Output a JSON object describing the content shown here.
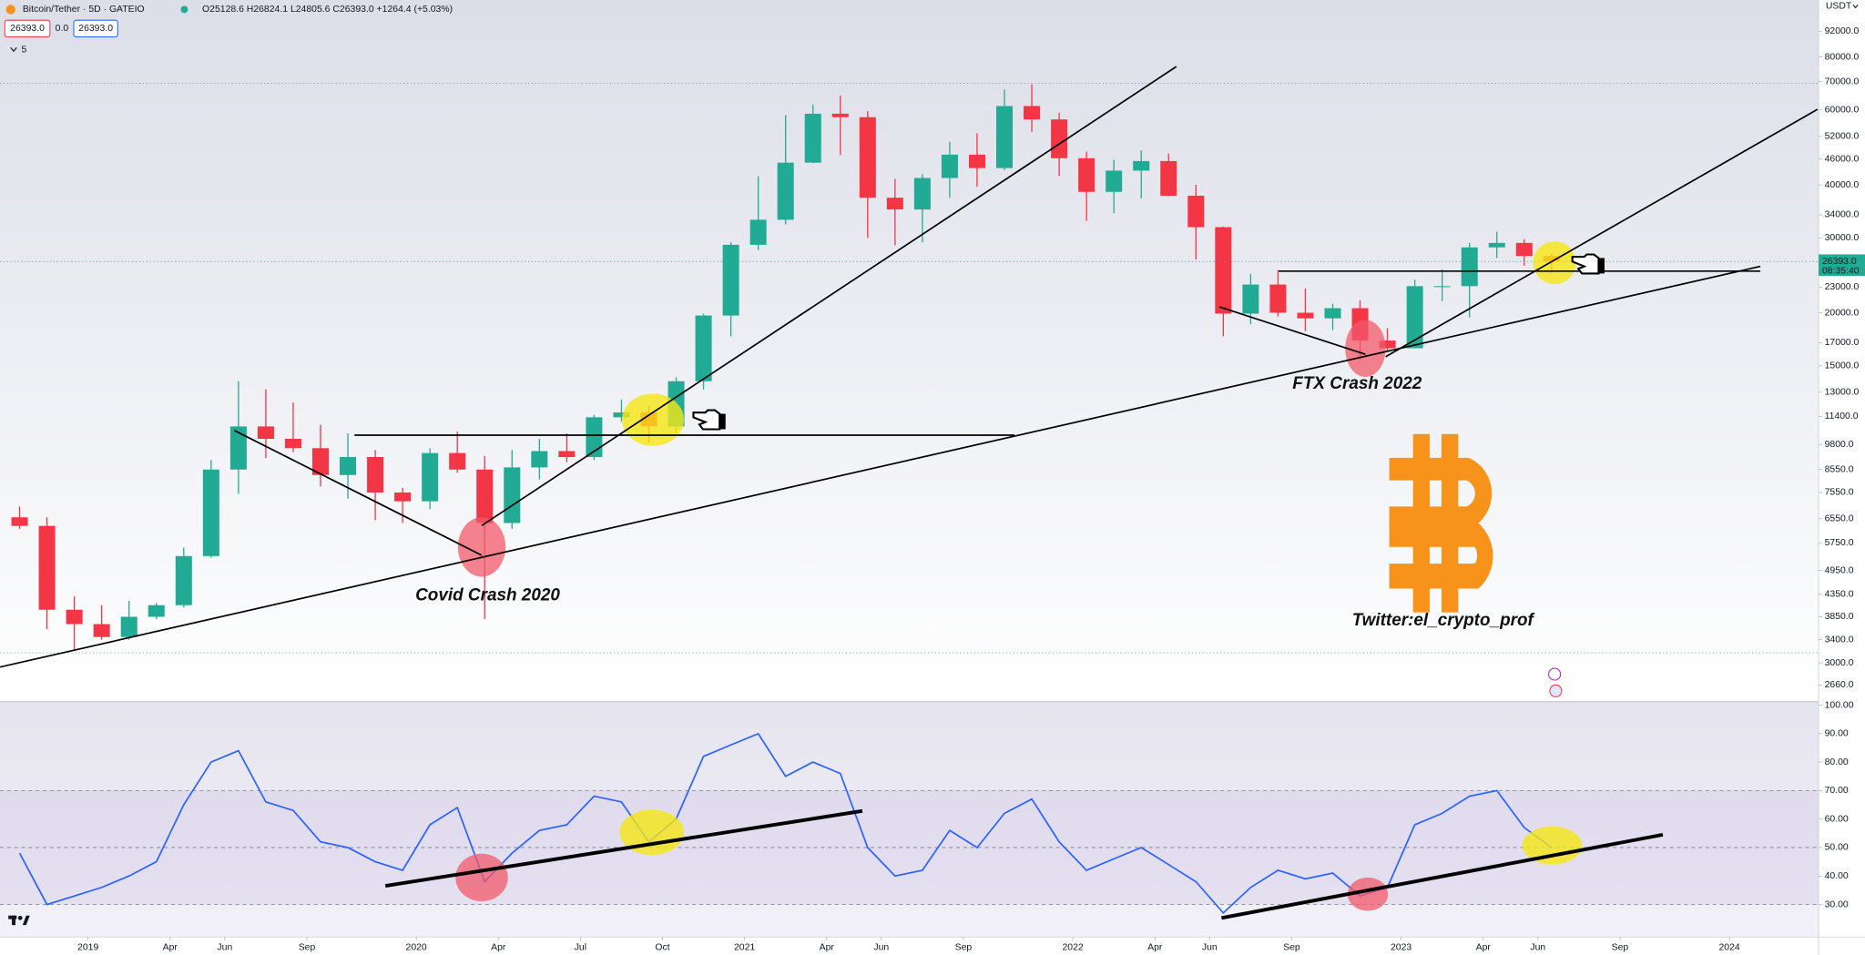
{
  "header": {
    "symbol": "Bitcoin/Tether · 5D · GATEIO",
    "ohlc": "O25128.6 H26824.1 L24805.6 C26393.0 +1264.4 (+5.03%)",
    "bid": "26393.0",
    "spread": "0.0",
    "ask": "26393.0",
    "indicators": "5",
    "currency": "USDT"
  },
  "chart_data": [
    {
      "type": "candlestick",
      "annotations": [
        "Covid Crash 2020",
        "FTX Crash 2022",
        "Twitter:el_crypto_prof"
      ],
      "x": [
        "2018-10",
        "2018-11",
        "2018-12",
        "2019-01",
        "2019-02",
        "2019-03",
        "2019-04",
        "2019-05",
        "2019-06",
        "2019-07",
        "2019-08",
        "2019-09",
        "2019-10",
        "2019-11",
        "2019-12",
        "2020-01",
        "2020-02",
        "2020-03",
        "2020-04",
        "2020-05",
        "2020-06",
        "2020-07",
        "2020-08",
        "2020-09",
        "2020-10",
        "2020-11",
        "2020-12",
        "2021-01",
        "2021-02",
        "2021-03",
        "2021-04",
        "2021-05",
        "2021-06",
        "2021-07",
        "2021-08",
        "2021-09",
        "2021-10",
        "2021-11",
        "2021-12",
        "2022-01",
        "2022-02",
        "2022-03",
        "2022-04",
        "2022-05",
        "2022-06",
        "2022-07",
        "2022-08",
        "2022-09",
        "2022-10",
        "2022-11",
        "2022-12",
        "2023-01",
        "2023-02",
        "2023-03",
        "2023-04",
        "2023-05",
        "2023-06"
      ],
      "open": [
        6600,
        6300,
        4000,
        3700,
        3450,
        3850,
        4100,
        5350,
        8550,
        10800,
        10100,
        9600,
        8300,
        9150,
        7550,
        7200,
        9350,
        8550,
        6400,
        8650,
        9450,
        9150,
        11350,
        11650,
        10800,
        13800,
        19700,
        28900,
        33100,
        45100,
        58800,
        57700,
        37300,
        35000,
        41500,
        47100,
        43800,
        61300,
        57000,
        46200,
        38500,
        43200,
        45500,
        37700,
        31800,
        19900,
        23300,
        20000,
        19400,
        20500,
        17200,
        16500,
        23100,
        23100,
        28500,
        29200,
        27200
      ],
      "high": [
        7000,
        6600,
        4300,
        4100,
        4200,
        4150,
        5600,
        9000,
        13800,
        13200,
        12300,
        10900,
        10400,
        9500,
        7750,
        9600,
        10500,
        9200,
        9500,
        10100,
        10400,
        11500,
        12500,
        12100,
        14100,
        19900,
        29300,
        41900,
        58400,
        61800,
        64900,
        59600,
        41300,
        42400,
        50500,
        52900,
        67000,
        69000,
        59100,
        47900,
        45800,
        48200,
        47400,
        40000,
        31900,
        24700,
        25200,
        22800,
        21000,
        21400,
        18400,
        23900,
        25300,
        29200,
        31000,
        29800,
        27500
      ],
      "low": [
        6200,
        3600,
        3200,
        3400,
        3400,
        3800,
        4050,
        5300,
        7500,
        9100,
        9400,
        7800,
        7300,
        6500,
        6400,
        6900,
        8400,
        3800,
        6200,
        8100,
        8900,
        9000,
        11100,
        9900,
        10400,
        13200,
        17600,
        28100,
        32300,
        45000,
        47000,
        30000,
        28800,
        29300,
        37300,
        39600,
        43300,
        53300,
        42000,
        32900,
        34300,
        37200,
        37600,
        26700,
        17600,
        18800,
        19600,
        18100,
        18200,
        15500,
        16300,
        16500,
        21300,
        19500,
        26900,
        25800,
        24800
      ],
      "close": [
        6300,
        4000,
        3700,
        3450,
        3850,
        4100,
        5350,
        8550,
        10800,
        10100,
        9600,
        8300,
        9150,
        7550,
        7200,
        9350,
        8550,
        6400,
        8650,
        9450,
        9150,
        11350,
        11650,
        10800,
        13800,
        19700,
        28900,
        33100,
        45100,
        58800,
        57700,
        37300,
        35000,
        41500,
        47100,
        43800,
        61300,
        57000,
        46200,
        38500,
        43200,
        45500,
        37700,
        31800,
        19900,
        23300,
        20000,
        19400,
        20500,
        17200,
        16500,
        23100,
        23100,
        28500,
        29200,
        27200,
        26393
      ],
      "up_color": "#22ab94",
      "down_color": "#f23645",
      "log_scale": true,
      "grid": false,
      "xlim": [
        "2018-10",
        "2024-04"
      ],
      "xticks": [
        {
          "value": "2019-01",
          "label": "2019"
        },
        {
          "value": "2019-04",
          "label": "Apr"
        },
        {
          "value": "2019-06",
          "label": "Jun"
        },
        {
          "value": "2019-09",
          "label": "Sep"
        },
        {
          "value": "2020-01",
          "label": "2020"
        },
        {
          "value": "2020-04",
          "label": "Apr"
        },
        {
          "value": "2020-07",
          "label": "Jul"
        },
        {
          "value": "2020-10",
          "label": "Oct"
        },
        {
          "value": "2021-01",
          "label": "2021"
        },
        {
          "value": "2021-04",
          "label": "Apr"
        },
        {
          "value": "2021-06",
          "label": "Jun"
        },
        {
          "value": "2021-09",
          "label": "Sep"
        },
        {
          "value": "2022-01",
          "label": "2022"
        },
        {
          "value": "2022-04",
          "label": "Apr"
        },
        {
          "value": "2022-06",
          "label": "Jun"
        },
        {
          "value": "2022-09",
          "label": "Sep"
        },
        {
          "value": "2023-01",
          "label": "2023"
        },
        {
          "value": "2023-04",
          "label": "Apr"
        },
        {
          "value": "2023-06",
          "label": "Jun"
        },
        {
          "value": "2023-09",
          "label": "Sep"
        },
        {
          "value": "2024-01",
          "label": "2024"
        }
      ],
      "ylim": [
        2432,
        108900
      ],
      "yticks": [
        {
          "value": 92000,
          "label": "92000.0"
        },
        {
          "value": 80000,
          "label": "80000.0"
        },
        {
          "value": 70000,
          "label": "70000.0"
        },
        {
          "value": 60000,
          "label": "60000.0"
        },
        {
          "value": 52000,
          "label": "52000.0"
        },
        {
          "value": 46000,
          "label": "46000.0"
        },
        {
          "value": 40000,
          "label": "40000.0"
        },
        {
          "value": 34000,
          "label": "34000.0"
        },
        {
          "value": 30000,
          "label": "30000.0"
        },
        {
          "value": 23000,
          "label": "23000.0"
        },
        {
          "value": 20000,
          "label": "20000.0"
        },
        {
          "value": 17000,
          "label": "17000.0"
        },
        {
          "value": 15000,
          "label": "15000.0"
        },
        {
          "value": 13000,
          "label": "13000.0"
        },
        {
          "value": 11400,
          "label": "11400.0"
        },
        {
          "value": 9800,
          "label": "9800.0"
        },
        {
          "value": 8550,
          "label": "8550.0"
        },
        {
          "value": 7550,
          "label": "7550.0"
        },
        {
          "value": 6550,
          "label": "6550.0"
        },
        {
          "value": 5750,
          "label": "5750.0"
        },
        {
          "value": 4950,
          "label": "4950.0"
        },
        {
          "value": 4350,
          "label": "4350.0"
        },
        {
          "value": 3850,
          "label": "3850.0"
        },
        {
          "value": 3400,
          "label": "3400.0"
        },
        {
          "value": 3000,
          "label": "3000.0"
        },
        {
          "value": 2660,
          "label": "2660.0"
        }
      ],
      "last_price": {
        "value": 26393,
        "label": "26393.0"
      },
      "countdown": "08:35:40",
      "last_price_color": "#22ab94"
    },
    {
      "type": "line",
      "x": [
        "2018-10",
        "2018-11",
        "2018-12",
        "2019-01",
        "2019-02",
        "2019-03",
        "2019-04",
        "2019-05",
        "2019-06",
        "2019-07",
        "2019-08",
        "2019-09",
        "2019-10",
        "2019-11",
        "2019-12",
        "2020-01",
        "2020-02",
        "2020-03",
        "2020-04",
        "2020-05",
        "2020-06",
        "2020-07",
        "2020-08",
        "2020-09",
        "2020-10",
        "2020-11",
        "2020-12",
        "2021-01",
        "2021-02",
        "2021-03",
        "2021-04",
        "2021-05",
        "2021-06",
        "2021-07",
        "2021-08",
        "2021-09",
        "2021-10",
        "2021-11",
        "2021-12",
        "2022-01",
        "2022-02",
        "2022-03",
        "2022-04",
        "2022-05",
        "2022-06",
        "2022-07",
        "2022-08",
        "2022-09",
        "2022-10",
        "2022-11",
        "2022-12",
        "2023-01",
        "2023-02",
        "2023-03",
        "2023-04",
        "2023-05",
        "2023-06"
      ],
      "values": [
        48,
        30,
        33,
        36,
        40,
        45,
        65,
        80,
        84,
        66,
        63,
        52,
        50,
        45,
        42,
        58,
        64,
        38,
        48,
        56,
        58,
        68,
        66,
        52,
        60,
        82,
        86,
        90,
        75,
        80,
        76,
        50,
        40,
        42,
        56,
        50,
        62,
        67,
        52,
        42,
        46,
        50,
        44,
        38,
        27,
        36,
        42,
        39,
        41,
        33,
        36,
        58,
        62,
        68,
        70,
        57,
        50
      ],
      "color": "#2962ff",
      "ylim": [
        19,
        100
      ],
      "yticks": [
        {
          "value": 100,
          "label": "100.00"
        },
        {
          "value": 90,
          "label": "90.00"
        },
        {
          "value": 80,
          "label": "80.00"
        },
        {
          "value": 70,
          "label": "70.00"
        },
        {
          "value": 60,
          "label": "60.00"
        },
        {
          "value": 50,
          "label": "50.00"
        },
        {
          "value": 40,
          "label": "40.00"
        },
        {
          "value": 30,
          "label": "30.00"
        }
      ],
      "levels": [
        30,
        50,
        70
      ]
    }
  ]
}
